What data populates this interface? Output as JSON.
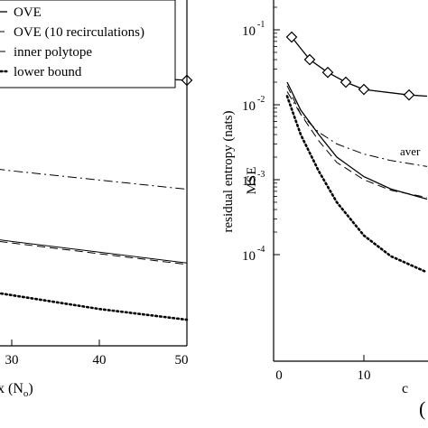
{
  "chart_data": [
    {
      "type": "line",
      "title": "",
      "xlabel_fragment": "x (N",
      "xlabel_subscript": "o",
      "xlabel_close": ")",
      "ylabel": "residual entropy (nats)",
      "xlim": [
        0,
        50
      ],
      "ylim": [
        0,
        10
      ],
      "xticks": [
        30,
        40,
        50
      ],
      "xtick_labels": [
        "30",
        "40",
        "50"
      ],
      "grid": false,
      "legend_position": "top-left",
      "legend_partially_cropped": true,
      "series": [
        {
          "name": "OVE",
          "style": "solid",
          "marker": "diamond",
          "points": [
            [
              10,
              9.2
            ],
            [
              20,
              9.05
            ],
            [
              30,
              8.95
            ],
            [
              40,
              8.8
            ],
            [
              50,
              8.65
            ]
          ],
          "marker_x": [
            10,
            40,
            50
          ]
        },
        {
          "name": "OVE (10 recirculations)",
          "style": "dashed",
          "points": [
            [
              20,
              3.7
            ],
            [
              30,
              3.35
            ],
            [
              40,
              3.0
            ],
            [
              50,
              2.65
            ]
          ]
        },
        {
          "name": "inner polytope",
          "style": "dashdot",
          "points": [
            [
              20,
              6.05
            ],
            [
              30,
              5.7
            ],
            [
              40,
              5.4
            ],
            [
              50,
              5.1
            ]
          ]
        },
        {
          "name": "lower bound",
          "style": "dotted",
          "points": [
            [
              20,
              2.1
            ],
            [
              30,
              1.65
            ],
            [
              40,
              1.2
            ],
            [
              50,
              0.85
            ]
          ]
        },
        {
          "name": "",
          "style": "solid-thin",
          "points": [
            [
              20,
              3.8
            ],
            [
              30,
              3.4
            ],
            [
              40,
              3.05
            ],
            [
              50,
              2.7
            ]
          ]
        }
      ]
    },
    {
      "type": "line",
      "title": "",
      "xlabel": "c",
      "ylabel": "MSE",
      "yscale": "log",
      "xlim": [
        0,
        17
      ],
      "ylim": [
        1e-05,
        0.2
      ],
      "xticks": [
        0,
        10
      ],
      "xtick_labels": [
        "0",
        "10"
      ],
      "yticks": [
        0.1,
        0.01,
        0.001,
        0.0001
      ],
      "ytick_labels": [
        "10",
        "10",
        "10",
        "10"
      ],
      "ytick_exponents": [
        "-1",
        "-2",
        "-3",
        "-4"
      ],
      "annotation": "aver",
      "bottom_right_partial_glyph": "(",
      "grid": false,
      "series": [
        {
          "name": "",
          "style": "solid",
          "marker": "diamond",
          "points": [
            [
              2,
              0.08
            ],
            [
              4,
              0.04
            ],
            [
              6,
              0.027
            ],
            [
              8,
              0.02
            ],
            [
              10,
              0.016
            ],
            [
              15,
              0.0135
            ],
            [
              17,
              0.013
            ]
          ],
          "marker_x": [
            2,
            4,
            6,
            8,
            10,
            15
          ]
        },
        {
          "name": "",
          "style": "dashdot",
          "points": [
            [
              1.5,
              0.015
            ],
            [
              3,
              0.0075
            ],
            [
              5,
              0.0043
            ],
            [
              7,
              0.003
            ],
            [
              10,
              0.0022
            ],
            [
              13,
              0.0018
            ],
            [
              17,
              0.0015
            ]
          ]
        },
        {
          "name": "",
          "style": "solid",
          "points": [
            [
              1.5,
              0.02
            ],
            [
              3,
              0.0085
            ],
            [
              5,
              0.004
            ],
            [
              7,
              0.002
            ],
            [
              10,
              0.0011
            ],
            [
              13,
              0.00075
            ],
            [
              17,
              0.00055
            ]
          ]
        },
        {
          "name": "",
          "style": "dashed",
          "points": [
            [
              1.5,
              0.018
            ],
            [
              3,
              0.0075
            ],
            [
              5,
              0.0033
            ],
            [
              7,
              0.0017
            ],
            [
              10,
              0.001
            ],
            [
              13,
              0.00072
            ],
            [
              17,
              0.00058
            ]
          ]
        },
        {
          "name": "",
          "style": "dotted",
          "points": [
            [
              1.5,
              0.013
            ],
            [
              3,
              0.004
            ],
            [
              5,
              0.0013
            ],
            [
              7,
              0.0005
            ],
            [
              10,
              0.00018
            ],
            [
              13,
              9.5e-05
            ],
            [
              17,
              5.8e-05
            ]
          ]
        }
      ]
    }
  ]
}
